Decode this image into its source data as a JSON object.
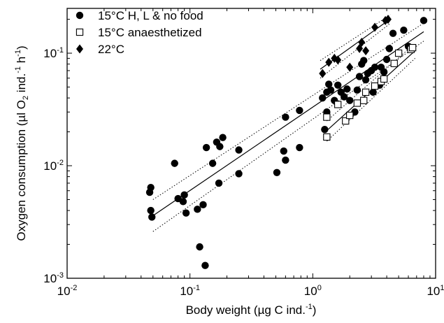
{
  "chart_data": {
    "type": "scatter",
    "xscale": "log",
    "yscale": "log",
    "xlim": [
      0.01,
      10
    ],
    "ylim": [
      0.001,
      0.25
    ],
    "grid": false,
    "legend_position": "top-left",
    "xlabel": {
      "text": "Body weight (µg C ind.",
      "sup": "-1",
      "tail": ")"
    },
    "ylabel": {
      "p1": "Oxygen consumption (µl O",
      "sub": "2",
      "p2": " ind.",
      "sup1": "-1",
      "p3": " h",
      "sup2": "-1",
      "p4": ")"
    },
    "xticks": [
      {
        "base": "10",
        "exp": "-2",
        "value": 0.01
      },
      {
        "base": "10",
        "exp": "-1",
        "value": 0.1
      },
      {
        "base": "10",
        "exp": "0",
        "value": 1
      },
      {
        "base": "10",
        "exp": "1",
        "value": 10
      }
    ],
    "yticks": [
      {
        "base": "10",
        "exp": "-3",
        "value": 0.001
      },
      {
        "base": "10",
        "exp": "-2",
        "value": 0.01
      },
      {
        "base": "10",
        "exp": "-1",
        "value": 0.1
      }
    ],
    "series": [
      {
        "name": "15°C H, L & no food",
        "marker": "circle-filled",
        "color": "#000000",
        "points": [
          [
            0.047,
            0.0058
          ],
          [
            0.048,
            0.0064
          ],
          [
            0.048,
            0.004
          ],
          [
            0.049,
            0.0035
          ],
          [
            0.075,
            0.0105
          ],
          [
            0.08,
            0.0051
          ],
          [
            0.088,
            0.0048
          ],
          [
            0.09,
            0.0055
          ],
          [
            0.093,
            0.0038
          ],
          [
            0.115,
            0.0041
          ],
          [
            0.12,
            0.0019
          ],
          [
            0.128,
            0.0045
          ],
          [
            0.133,
            0.0013
          ],
          [
            0.136,
            0.0145
          ],
          [
            0.153,
            0.0105
          ],
          [
            0.165,
            0.0162
          ],
          [
            0.172,
            0.007
          ],
          [
            0.175,
            0.0148
          ],
          [
            0.185,
            0.0178
          ],
          [
            0.25,
            0.0138
          ],
          [
            0.25,
            0.0085
          ],
          [
            0.51,
            0.0087
          ],
          [
            0.58,
            0.0135
          ],
          [
            0.6,
            0.0112
          ],
          [
            0.6,
            0.027
          ],
          [
            0.78,
            0.0145
          ],
          [
            0.78,
            0.031
          ],
          [
            1.2,
            0.04
          ],
          [
            1.25,
            0.021
          ],
          [
            1.3,
            0.03
          ],
          [
            1.3,
            0.045
          ],
          [
            1.35,
            0.053
          ],
          [
            1.4,
            0.047
          ],
          [
            1.5,
            0.038
          ],
          [
            1.6,
            0.052
          ],
          [
            1.7,
            0.045
          ],
          [
            1.8,
            0.041
          ],
          [
            1.9,
            0.048
          ],
          [
            2.0,
            0.038
          ],
          [
            2.2,
            0.03
          ],
          [
            2.3,
            0.047
          ],
          [
            2.4,
            0.062
          ],
          [
            2.5,
            0.08
          ],
          [
            2.6,
            0.086
          ],
          [
            2.7,
            0.058
          ],
          [
            2.8,
            0.066
          ],
          [
            3.0,
            0.07
          ],
          [
            3.1,
            0.045
          ],
          [
            3.2,
            0.075
          ],
          [
            3.5,
            0.052
          ],
          [
            3.6,
            0.075
          ],
          [
            3.8,
            0.068
          ],
          [
            4.0,
            0.088
          ],
          [
            4.2,
            0.11
          ],
          [
            4.5,
            0.15
          ],
          [
            5.5,
            0.16
          ],
          [
            6.0,
            0.115
          ],
          [
            8.0,
            0.195
          ]
        ]
      },
      {
        "name": "15°C anaesthetized",
        "marker": "square-open",
        "color": "#000000",
        "points": [
          [
            1.3,
            0.018
          ],
          [
            1.3,
            0.027
          ],
          [
            1.6,
            0.035
          ],
          [
            1.85,
            0.025
          ],
          [
            2.0,
            0.028
          ],
          [
            2.3,
            0.036
          ],
          [
            2.6,
            0.038
          ],
          [
            2.7,
            0.045
          ],
          [
            3.2,
            0.051
          ],
          [
            3.6,
            0.056
          ],
          [
            3.8,
            0.059
          ],
          [
            4.6,
            0.081
          ],
          [
            5.0,
            0.1
          ],
          [
            6.3,
            0.108
          ],
          [
            6.5,
            0.112
          ]
        ]
      },
      {
        "name": "22°C",
        "marker": "diamond-filled",
        "color": "#000000",
        "points": [
          [
            1.2,
            0.066
          ],
          [
            1.35,
            0.083
          ],
          [
            1.5,
            0.09
          ],
          [
            1.6,
            0.087
          ],
          [
            2.0,
            0.075
          ],
          [
            2.4,
            0.11
          ],
          [
            2.5,
            0.125
          ],
          [
            2.7,
            0.105
          ],
          [
            3.2,
            0.17
          ],
          [
            3.9,
            0.195
          ],
          [
            4.1,
            0.2
          ]
        ]
      }
    ],
    "regression_lines": [
      {
        "series": "15°C H, L & no food",
        "x": [
          0.05,
          8.0
        ],
        "y": [
          0.0036,
          0.155
        ],
        "ci_upper": [
          0.005,
          0.185
        ],
        "ci_lower": [
          0.0026,
          0.128
        ]
      },
      {
        "series": "15°C anaesthetized",
        "x": [
          1.3,
          6.8
        ],
        "y": [
          0.0205,
          0.105
        ],
        "ci_upper": [
          0.025,
          0.122
        ],
        "ci_lower": [
          0.0165,
          0.09
        ]
      },
      {
        "series": "22°C",
        "x": [
          1.15,
          4.3
        ],
        "y": [
          0.072,
          0.202
        ],
        "ci_upper": [
          0.086,
          0.22
        ],
        "ci_lower": [
          0.06,
          0.185
        ]
      }
    ]
  }
}
